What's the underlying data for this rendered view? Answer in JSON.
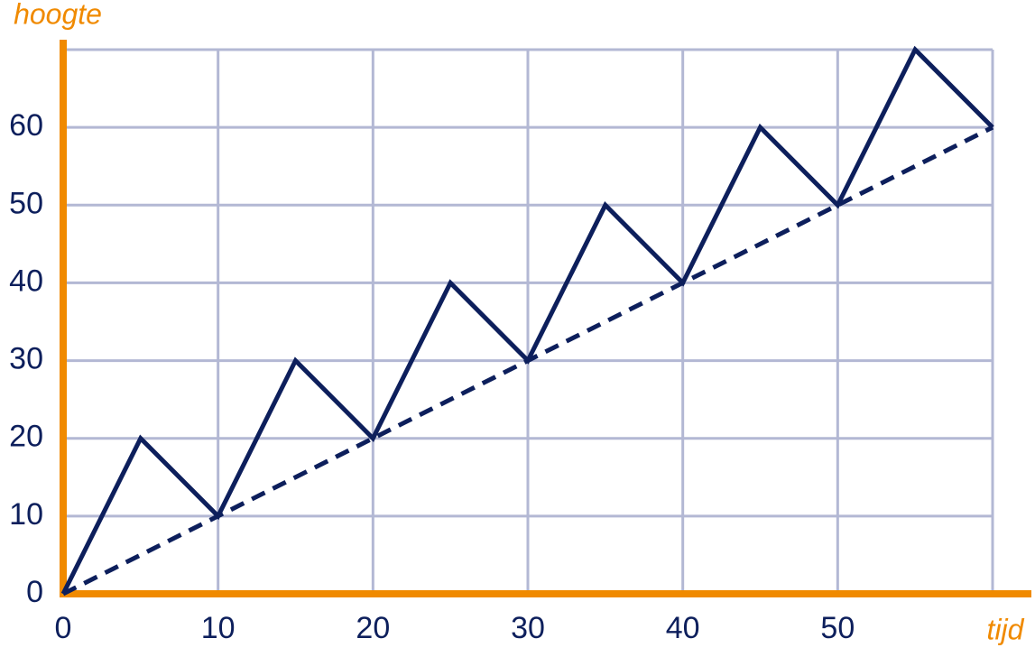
{
  "chart_data": {
    "type": "line",
    "x_label": "tijd",
    "y_label": "hoogte",
    "xlim": [
      0,
      60
    ],
    "ylim": [
      0,
      70
    ],
    "xticks": [
      0,
      10,
      20,
      30,
      40,
      50
    ],
    "yticks": [
      0,
      10,
      20,
      30,
      40,
      50,
      60
    ],
    "grid": true,
    "grid_color": "#b3b8d4",
    "axis_color": "#f08a00",
    "series": [
      {
        "color": "#0d1f5c",
        "dashed": false,
        "x": [
          0,
          5,
          10,
          15,
          20,
          25,
          30,
          35,
          40,
          45,
          50,
          55,
          60
        ],
        "values": [
          0,
          20,
          10,
          30,
          20,
          40,
          30,
          50,
          40,
          60,
          50,
          70,
          60
        ]
      },
      {
        "color": "#0d1f5c",
        "dashed": true,
        "x": [
          0,
          60
        ],
        "values": [
          0,
          60
        ]
      }
    ]
  }
}
